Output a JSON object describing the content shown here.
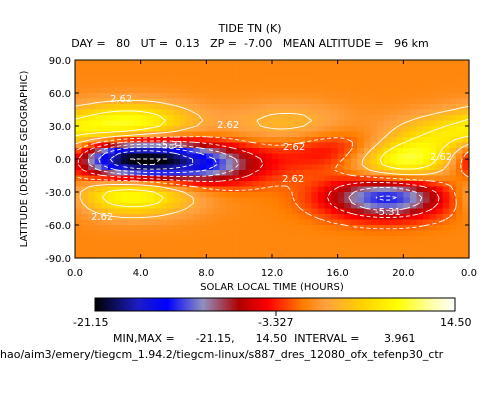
{
  "title": "TIDE TN (K)",
  "subtitle": "DAY =   80   UT =  0.13   ZP =  -7.00   MEAN ALTITUDE =   96 km",
  "colorbar": {
    "min_label": "-21.15",
    "mid_label": "-3.327",
    "max_label": "14.50",
    "stops": [
      "#000000",
      "#1c1cc8",
      "#0000ff",
      "#9090c0",
      "#b00000",
      "#ff0000",
      "#ff8000",
      "#ffa040",
      "#ffd000",
      "#ffff00",
      "#ffffa0",
      "#ffffff"
    ]
  },
  "stats_line": "MIN,MAX =      -21.15,      14.50  INTERVAL =       3.961",
  "file_path": "hao/aim3/emery/tiegcm_1.94.2/tiegcm-linux/s887_dres_12080_ofx_tefenp30_ctr",
  "chart_data": {
    "type": "heatmap",
    "title": "TIDE TN (K)",
    "xlabel": "SOLAR LOCAL TIME (HOURS)",
    "ylabel": "LATITUDE (DEGREES GEOGRAPHIC)",
    "xlim": [
      0,
      24
    ],
    "ylim": [
      -90,
      90
    ],
    "xticks": [
      "0.0",
      "4.0",
      "8.0",
      "12.0",
      "16.0",
      "20.0",
      "0.0"
    ],
    "yticks": [
      "90.0",
      "60.0",
      "30.0",
      "0.0",
      "-30.0",
      "-60.0",
      "-90.0"
    ],
    "zlim": [
      -21.15,
      14.5
    ],
    "contour_interval": 3.961,
    "background_value": 0,
    "features": [
      {
        "x": 3.5,
        "y": 0,
        "value": -21.15
      },
      {
        "x": 8.0,
        "y": -5,
        "value": -11.0
      },
      {
        "x": 17.0,
        "y": 5,
        "value": -9.0
      },
      {
        "x": 19.0,
        "y": -35,
        "value": -14.0
      },
      {
        "x": 19.5,
        "y": 0,
        "value": 14.5
      },
      {
        "x": 3.5,
        "y": 32,
        "value": 9.5
      },
      {
        "x": 3.5,
        "y": -32,
        "value": 10.0
      },
      {
        "x": 13.0,
        "y": 32,
        "value": 3.5
      },
      {
        "x": 23.0,
        "y": 22,
        "value": 6.0
      }
    ],
    "contour_labels": [
      "2.62",
      "-5.31",
      "2.62",
      "2.62",
      "2.62",
      "2.62",
      "-5.31",
      "2.62"
    ]
  }
}
